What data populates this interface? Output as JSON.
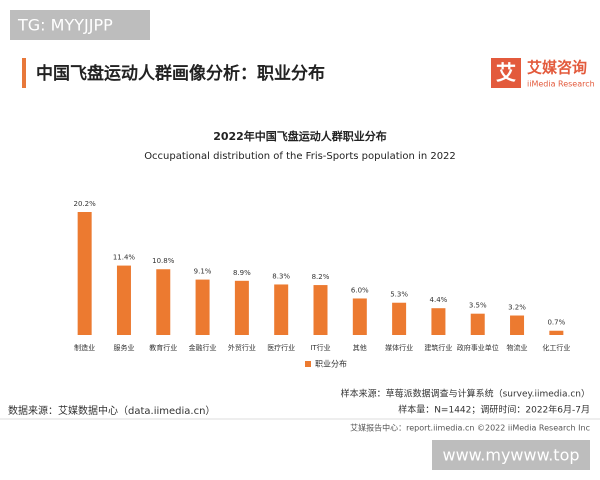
{
  "watermark_top": "TG: MYYJJPP",
  "header": {
    "title": "中国飞盘运动人群画像分析：职业分布",
    "logo_mark": "艾",
    "logo_name": "艾媒咨询",
    "logo_sub": "iiMedia Research"
  },
  "chart_data": {
    "type": "bar",
    "title": "2022年中国飞盘运动人群职业分布",
    "subtitle": "Occupational distribution of the Fris-Sports population in 2022",
    "categories": [
      "制造业",
      "服务业",
      "教育行业",
      "金融行业",
      "外贸行业",
      "医疗行业",
      "IT行业",
      "其他",
      "媒体行业",
      "建筑行业",
      "政府事业单位",
      "物流业",
      "化工行业"
    ],
    "series": [
      {
        "name": "职业分布",
        "color": "#ec7a30",
        "values": [
          20.2,
          11.4,
          10.8,
          9.1,
          8.9,
          8.3,
          8.2,
          6.0,
          5.3,
          4.4,
          3.5,
          3.2,
          0.7
        ],
        "value_labels": [
          "20.2%",
          "11.4%",
          "10.8%",
          "9.1%",
          "8.9%",
          "8.3%",
          "8.2%",
          "6.0%",
          "5.3%",
          "4.4%",
          "3.5%",
          "3.2%",
          "0.7%"
        ]
      }
    ]
  },
  "notes": [
    "样本来源：草莓派数据调查与计算系统（survey.iimedia.cn）",
    "样本量：N=1442；调研时间：2022年6月-7月"
  ],
  "data_source": "数据来源：艾媒数据中心（data.iimedia.cn）",
  "footer": "艾媒报告中心：report.iimedia.cn  ©2022  iiMedia Research  Inc",
  "watermark_bottom": "www.mywww.top"
}
